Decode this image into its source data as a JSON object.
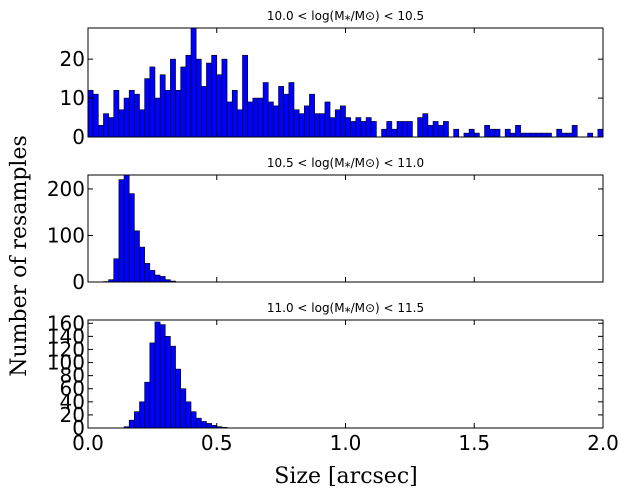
{
  "chart_data": {
    "type": "bar",
    "xlabel": "Size [arcsec]",
    "ylabel": "Number of resamples",
    "xlim": [
      0.0,
      2.0
    ],
    "bin_width": 0.02,
    "x_tick_labels": [
      "0.0",
      "0.5",
      "1.0",
      "1.5",
      "2.0"
    ],
    "x_ticks": [
      0.0,
      0.5,
      1.0,
      1.5,
      2.0
    ],
    "panels": [
      {
        "title": "10.0 < log(M⁎/M⊙) < 10.5",
        "ylim": [
          0,
          28
        ],
        "y_ticks": [
          0,
          10,
          20
        ],
        "y_tick_labels": [
          "0",
          "10",
          "20"
        ],
        "bin_starts": [
          0.0,
          0.02,
          0.04,
          0.06,
          0.08,
          0.1,
          0.12,
          0.14,
          0.16,
          0.18,
          0.2,
          0.22,
          0.24,
          0.26,
          0.28,
          0.3,
          0.32,
          0.34,
          0.36,
          0.38,
          0.4,
          0.42,
          0.44,
          0.46,
          0.48,
          0.5,
          0.52,
          0.54,
          0.56,
          0.58,
          0.6,
          0.62,
          0.64,
          0.66,
          0.68,
          0.7,
          0.72,
          0.74,
          0.76,
          0.78,
          0.8,
          0.82,
          0.84,
          0.86,
          0.88,
          0.9,
          0.92,
          0.94,
          0.96,
          0.98,
          1.0,
          1.02,
          1.04,
          1.06,
          1.08,
          1.1,
          1.12,
          1.14,
          1.16,
          1.18,
          1.2,
          1.22,
          1.24,
          1.26,
          1.28,
          1.3,
          1.32,
          1.34,
          1.36,
          1.38,
          1.4,
          1.42,
          1.44,
          1.46,
          1.48,
          1.5,
          1.52,
          1.54,
          1.56,
          1.58,
          1.6,
          1.62,
          1.64,
          1.66,
          1.68,
          1.7,
          1.72,
          1.74,
          1.76,
          1.78,
          1.8,
          1.82,
          1.84,
          1.86,
          1.88,
          1.9,
          1.92,
          1.94,
          1.96,
          1.98
        ],
        "values": [
          12,
          11,
          3,
          6,
          5,
          12,
          7,
          10,
          12,
          11,
          7,
          15,
          18,
          10,
          16,
          12,
          20,
          12,
          18,
          21,
          28,
          20,
          13,
          19,
          21,
          16,
          20,
          9,
          12,
          7,
          21,
          9,
          10,
          10,
          14,
          9,
          8,
          13,
          11,
          14,
          7,
          6,
          8,
          11,
          6,
          6,
          9,
          5,
          7,
          8,
          5,
          4,
          5,
          4,
          5,
          4,
          0,
          2,
          4,
          2,
          4,
          4,
          4,
          0,
          5,
          6,
          3,
          4,
          3,
          4,
          0,
          2,
          0,
          1,
          2,
          1,
          0,
          3,
          2,
          2,
          0,
          2,
          1,
          3,
          1,
          1,
          1,
          1,
          1,
          1,
          0,
          2,
          1,
          1,
          3,
          0,
          0,
          1,
          0,
          2
        ]
      },
      {
        "title": "10.5 < log(M⁎/M⊙) < 11.0",
        "ylim": [
          0,
          230
        ],
        "y_ticks": [
          0,
          100,
          200
        ],
        "y_tick_labels": [
          "0",
          "100",
          "200"
        ],
        "bin_starts": [
          0.06,
          0.08,
          0.1,
          0.12,
          0.14,
          0.16,
          0.18,
          0.2,
          0.22,
          0.24,
          0.26,
          0.28,
          0.3,
          0.32
        ],
        "values": [
          1,
          5,
          50,
          220,
          230,
          190,
          110,
          75,
          40,
          25,
          15,
          12,
          5,
          2
        ]
      },
      {
        "title": "11.0 < log(M⁎/M⊙) < 11.5",
        "ylim": [
          0,
          165
        ],
        "y_ticks": [
          0,
          20,
          40,
          60,
          80,
          100,
          120,
          140,
          160
        ],
        "y_tick_labels": [
          "0",
          "20",
          "40",
          "60",
          "80",
          "100",
          "120",
          "140",
          "160"
        ],
        "bin_starts": [
          0.14,
          0.16,
          0.18,
          0.2,
          0.22,
          0.24,
          0.26,
          0.28,
          0.3,
          0.32,
          0.34,
          0.36,
          0.38,
          0.4,
          0.42,
          0.44,
          0.46,
          0.48,
          0.5,
          0.52
        ],
        "values": [
          2,
          12,
          25,
          40,
          70,
          130,
          162,
          158,
          140,
          125,
          90,
          60,
          40,
          25,
          15,
          10,
          7,
          4,
          2,
          1
        ]
      }
    ]
  }
}
